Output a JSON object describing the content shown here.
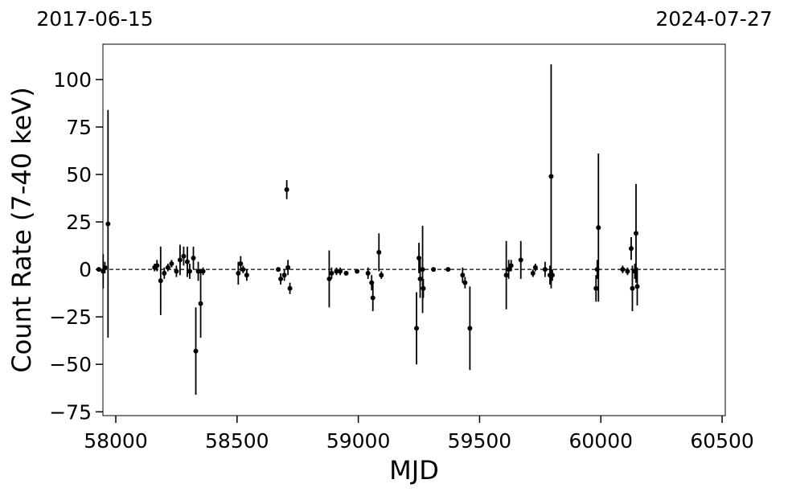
{
  "chart_data": {
    "type": "errorbar_scatter",
    "top_labels": [
      "2017-06-15",
      "2024-07-27"
    ],
    "xlabel": "MJD",
    "ylabel": "Count Rate (7-40 keV)",
    "color": "#000000",
    "hline": 0,
    "xlim": [
      57947,
      60513
    ],
    "ylim": [
      -77,
      118.6
    ],
    "xticks": [
      58000,
      58500,
      59000,
      59500,
      60000,
      60500
    ],
    "yticks": [
      {
        "value": -75,
        "label": "−75"
      },
      {
        "value": -50,
        "label": "−50"
      },
      {
        "value": -25,
        "label": "−25"
      },
      0,
      25,
      50,
      75,
      100
    ],
    "x": [
      57930,
      57948,
      57955,
      57968,
      58160,
      58170,
      58185,
      58200,
      58215,
      58230,
      58250,
      58265,
      58280,
      58295,
      58305,
      58320,
      58330,
      58340,
      58350,
      58360,
      58505,
      58515,
      58525,
      58540,
      58670,
      58680,
      58695,
      58705,
      58710,
      58718,
      58880,
      58890,
      58910,
      58925,
      58950,
      58995,
      59040,
      59055,
      59060,
      59085,
      59095,
      59240,
      59250,
      59255,
      59265,
      59268,
      59310,
      59370,
      59430,
      59440,
      59460,
      59610,
      59620,
      59630,
      59670,
      59720,
      59730,
      59770,
      59790,
      59795,
      59800,
      59980,
      59985,
      59990,
      60090,
      60110,
      60125,
      60130,
      60140,
      60145,
      60150
    ],
    "values": [
      0,
      -1,
      1,
      24,
      1,
      2,
      -6,
      -2,
      1,
      3,
      -1,
      5,
      7,
      4,
      -1,
      6,
      -43,
      -1,
      -18,
      -1,
      -2,
      3,
      0,
      -3,
      0,
      -5,
      -3,
      42,
      1,
      -10,
      -5,
      -2,
      -1,
      -1,
      -2,
      -1,
      -2,
      -7,
      -15,
      9,
      -3,
      -31,
      6,
      -5,
      0,
      -10,
      0,
      0,
      -3,
      -7,
      -31,
      -3,
      0,
      2,
      5,
      -2,
      1,
      0,
      -3,
      49,
      -3,
      -10,
      0,
      22,
      0,
      -1,
      11,
      -10,
      -1,
      19,
      -9
    ],
    "errors": [
      1,
      9,
      3,
      60,
      2,
      3,
      18,
      3,
      2,
      2,
      3,
      8,
      5,
      8,
      4,
      6,
      23,
      5,
      18,
      2,
      6,
      4,
      2,
      3,
      1,
      3,
      3,
      5,
      4,
      3,
      15,
      3,
      2,
      2,
      1,
      1,
      3,
      4,
      7,
      10,
      2,
      19,
      8,
      10,
      23,
      5,
      1,
      1,
      4,
      3,
      22,
      18,
      5,
      3,
      10,
      2,
      2,
      4,
      5,
      59,
      3,
      7,
      5,
      39,
      2,
      2,
      6,
      12,
      4,
      26,
      10
    ]
  }
}
